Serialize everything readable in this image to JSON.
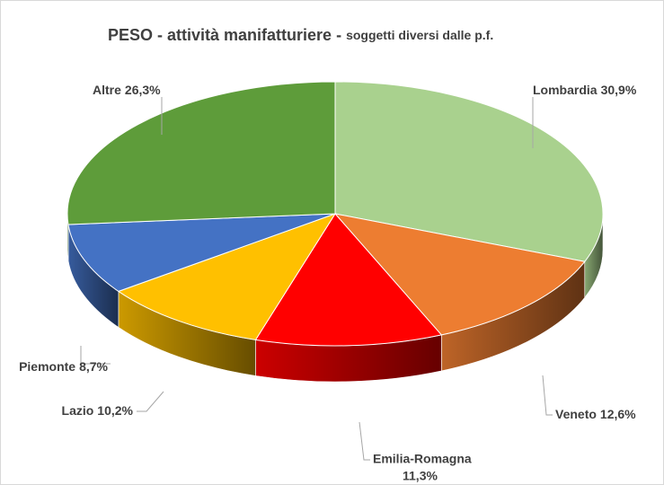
{
  "chart_data": {
    "type": "pie3d",
    "title": "PESO - attività manifatturiere -",
    "subtitle": "soggetti diversi dalle p.f.",
    "categories": [
      "Lombardia",
      "Veneto",
      "Emilia-Romagna",
      "Lazio",
      "Piemonte",
      "Altre"
    ],
    "values": [
      30.9,
      12.6,
      11.3,
      10.2,
      8.7,
      26.3
    ],
    "value_labels": [
      "30,9%",
      "12,6%",
      "11,3%",
      "10,2%",
      "8,7%",
      "26,3%"
    ],
    "colors": [
      "#a9d18e",
      "#ed7d31",
      "#ff0000",
      "#ffc000",
      "#4472c4",
      "#5e9c3a"
    ]
  }
}
